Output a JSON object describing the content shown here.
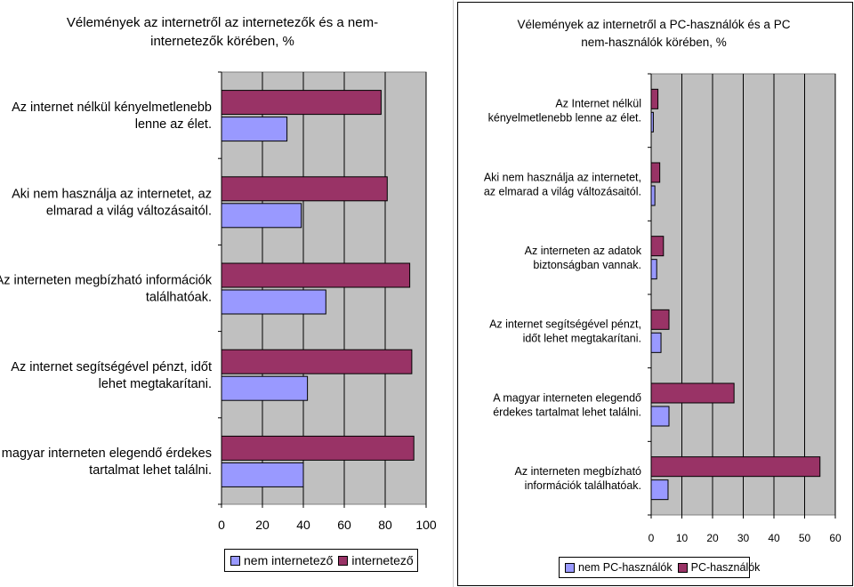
{
  "colors": {
    "series_a": "#9999ff",
    "series_b": "#993366",
    "plot_bg": "#c0c0c0",
    "grid": "#000000"
  },
  "chart_data": [
    {
      "type": "bar",
      "orientation": "horizontal",
      "title": "Vélemények az internetről az internetezők és a nem-internetezők körében, %",
      "categories": [
        "Az internet nélkül kényelmetlenebb lenne az élet.",
        "Aki nem használja az internetet, az elmarad a világ változásaitól.",
        "Az interneten megbízható információk találhatóak.",
        "Az internet segítségével pénzt, időt lehet megtakarítani.",
        "A magyar interneten elegendő érdekes tartalmat lehet találni."
      ],
      "series": [
        {
          "name": "nem internetező",
          "values": [
            32,
            39,
            51,
            42,
            40
          ]
        },
        {
          "name": "internetező",
          "values": [
            78,
            81,
            92,
            93,
            94
          ]
        }
      ],
      "xlim": [
        0,
        100
      ],
      "xticks": [
        "0",
        "20",
        "40",
        "60",
        "80",
        "100"
      ],
      "grid": true,
      "legend": "bottom"
    },
    {
      "type": "bar",
      "orientation": "horizontal",
      "title": "Vélemények az internetről a PC-használók és a PC nem-használók körében, %",
      "categories": [
        "Az Internet nélkül kényelmetlenebb lenne az élet.",
        "Aki nem használja az internetet, az elmarad a világ változásaitól.",
        "Az interneten az adatok biztonságban vannak.",
        "Az internet segítségével pénzt, időt lehet megtakarítani.",
        "A magyar interneten elegendő érdekes tartalmat lehet találni.",
        "Az interneten megbízható információk találhatóak."
      ],
      "series": [
        {
          "name": "nem PC-használók",
          "values": [
            0.7,
            1.2,
            1.8,
            3.2,
            5.8,
            5.5
          ]
        },
        {
          "name": "PC-használók",
          "values": [
            2.2,
            2.8,
            4,
            5.8,
            27,
            55
          ]
        }
      ],
      "xlim": [
        0,
        60
      ],
      "xticks": [
        "0",
        "10",
        "20",
        "30",
        "40",
        "50",
        "60"
      ],
      "grid": true,
      "legend": "bottom"
    }
  ]
}
